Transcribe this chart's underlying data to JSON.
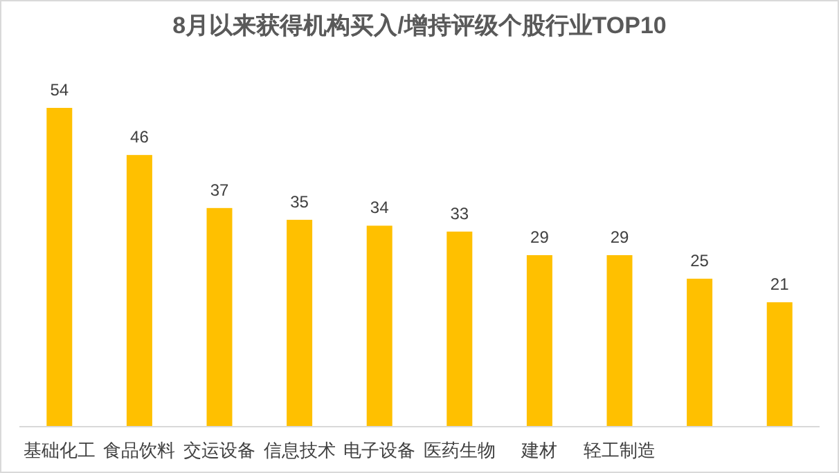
{
  "chart_data": {
    "type": "bar",
    "title": "8月以来获得机构买入/增持评级个股行业TOP10",
    "categories": [
      "基础化工",
      "食品饮料",
      "交运设备",
      "信息技术",
      "电子设备",
      "医药生物",
      "建材",
      "轻工制造",
      null,
      null
    ],
    "values": [
      54,
      46,
      37,
      35,
      34,
      33,
      29,
      29,
      25,
      21
    ],
    "color": "#ffc000",
    "data_labels": true
  }
}
